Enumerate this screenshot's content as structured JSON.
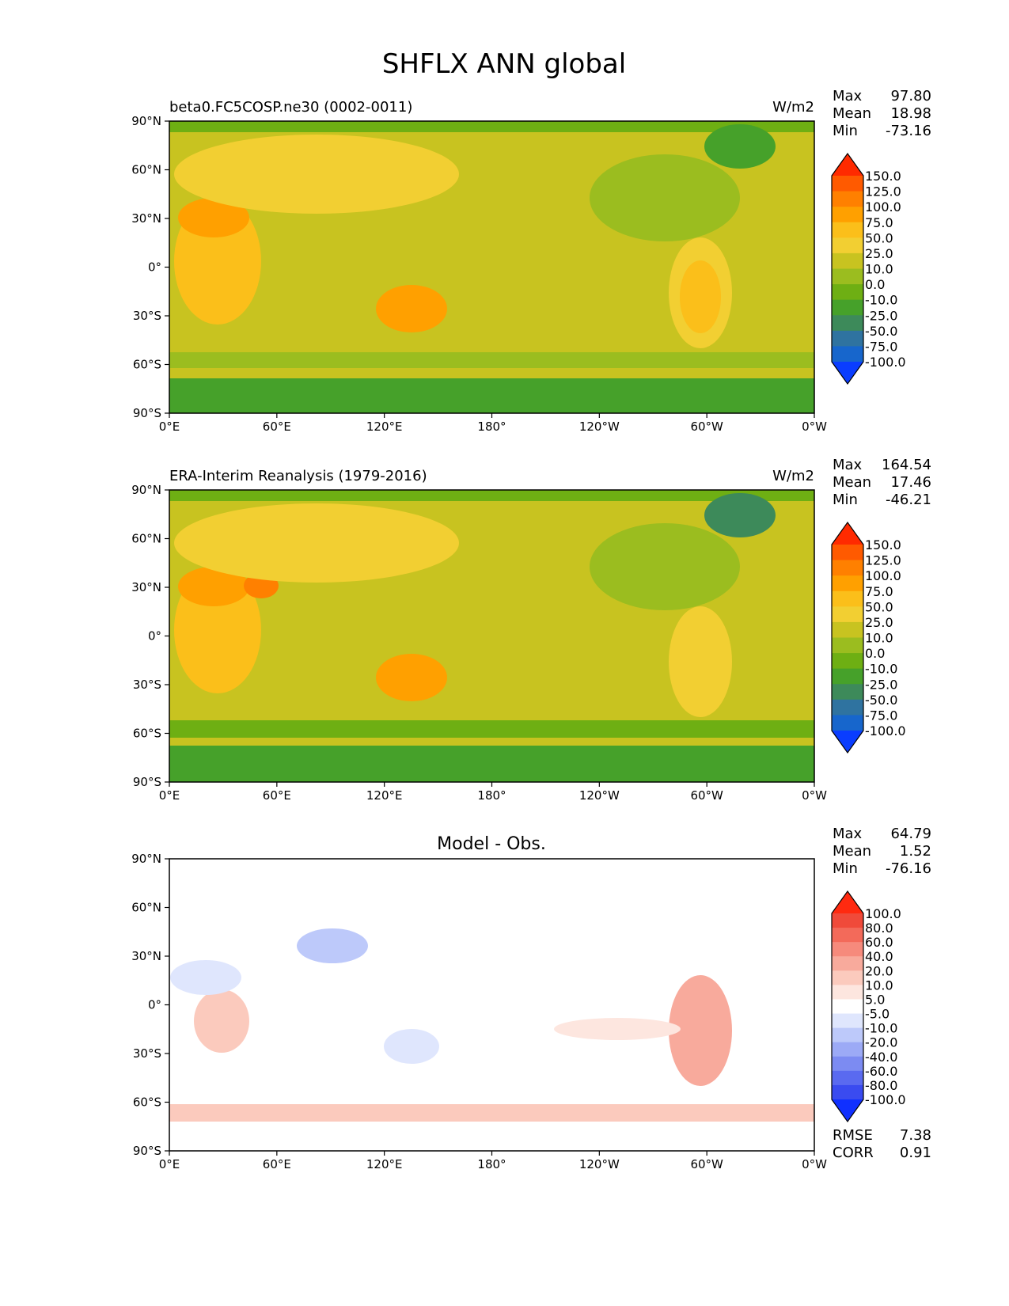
{
  "figure": {
    "title": "SHFLX ANN global"
  },
  "x_ticks": [
    "0°E",
    "60°E",
    "120°E",
    "180°",
    "120°W",
    "60°W",
    "0°W"
  ],
  "y_ticks": [
    "90°N",
    "60°N",
    "30°N",
    "0°",
    "30°S",
    "60°S",
    "90°S"
  ],
  "panels": [
    {
      "left_title": "beta0.FC5COSP.ne30 (0002-0011)",
      "center_title": "",
      "units": "W/m2",
      "stats": [
        {
          "label": "Max",
          "value": "97.80"
        },
        {
          "label": "Mean",
          "value": "18.98"
        },
        {
          "label": "Min",
          "value": "-73.16"
        }
      ],
      "colorbar": {
        "levels": [
          "150.0",
          "125.0",
          "100.0",
          "75.0",
          "50.0",
          "25.0",
          "10.0",
          "0.0",
          "-10.0",
          "-25.0",
          "-50.0",
          "-75.0",
          "-100.0"
        ],
        "colors": [
          "#ff2a00",
          "#ff5a00",
          "#ff8000",
          "#ffa000",
          "#fbbf1a",
          "#f2cf32",
          "#c8c320",
          "#9bbd1f",
          "#6eaf13",
          "#46a12a",
          "#3d8a5a",
          "#2f73a0",
          "#1766cc",
          "#0a3dff"
        ]
      },
      "extra_stats": []
    },
    {
      "left_title": "ERA-Interim Reanalysis (1979-2016)",
      "center_title": "",
      "units": "W/m2",
      "stats": [
        {
          "label": "Max",
          "value": "164.54"
        },
        {
          "label": "Mean",
          "value": "17.46"
        },
        {
          "label": "Min",
          "value": "-46.21"
        }
      ],
      "colorbar": {
        "levels": [
          "150.0",
          "125.0",
          "100.0",
          "75.0",
          "50.0",
          "25.0",
          "10.0",
          "0.0",
          "-10.0",
          "-25.0",
          "-50.0",
          "-75.0",
          "-100.0"
        ],
        "colors": [
          "#ff2a00",
          "#ff5a00",
          "#ff8000",
          "#ffa000",
          "#fbbf1a",
          "#f2cf32",
          "#c8c320",
          "#9bbd1f",
          "#6eaf13",
          "#46a12a",
          "#3d8a5a",
          "#2f73a0",
          "#1766cc",
          "#0a3dff"
        ]
      },
      "extra_stats": []
    },
    {
      "left_title": "",
      "center_title": "Model - Obs.",
      "units": "",
      "stats": [
        {
          "label": "Max",
          "value": "64.79"
        },
        {
          "label": "Mean",
          "value": "1.52"
        },
        {
          "label": "Min",
          "value": "-76.16"
        }
      ],
      "colorbar": {
        "levels": [
          "100.0",
          "80.0",
          "60.0",
          "40.0",
          "20.0",
          "10.0",
          "5.0",
          "-5.0",
          "-10.0",
          "-20.0",
          "-40.0",
          "-60.0",
          "-80.0",
          "-100.0"
        ],
        "colors": [
          "#ff2a10",
          "#f04a3a",
          "#f36a5a",
          "#f68a7c",
          "#f8aa9c",
          "#fbcabd",
          "#fde6df",
          "#ffffff",
          "#dfe6fd",
          "#bdc9fa",
          "#9caaf6",
          "#7c8bf2",
          "#5a6af0",
          "#3a4bf0",
          "#1030ff"
        ]
      },
      "extra_stats": [
        {
          "label": "RMSE",
          "value": "7.38"
        },
        {
          "label": "CORR",
          "value": "0.91"
        }
      ]
    }
  ]
}
